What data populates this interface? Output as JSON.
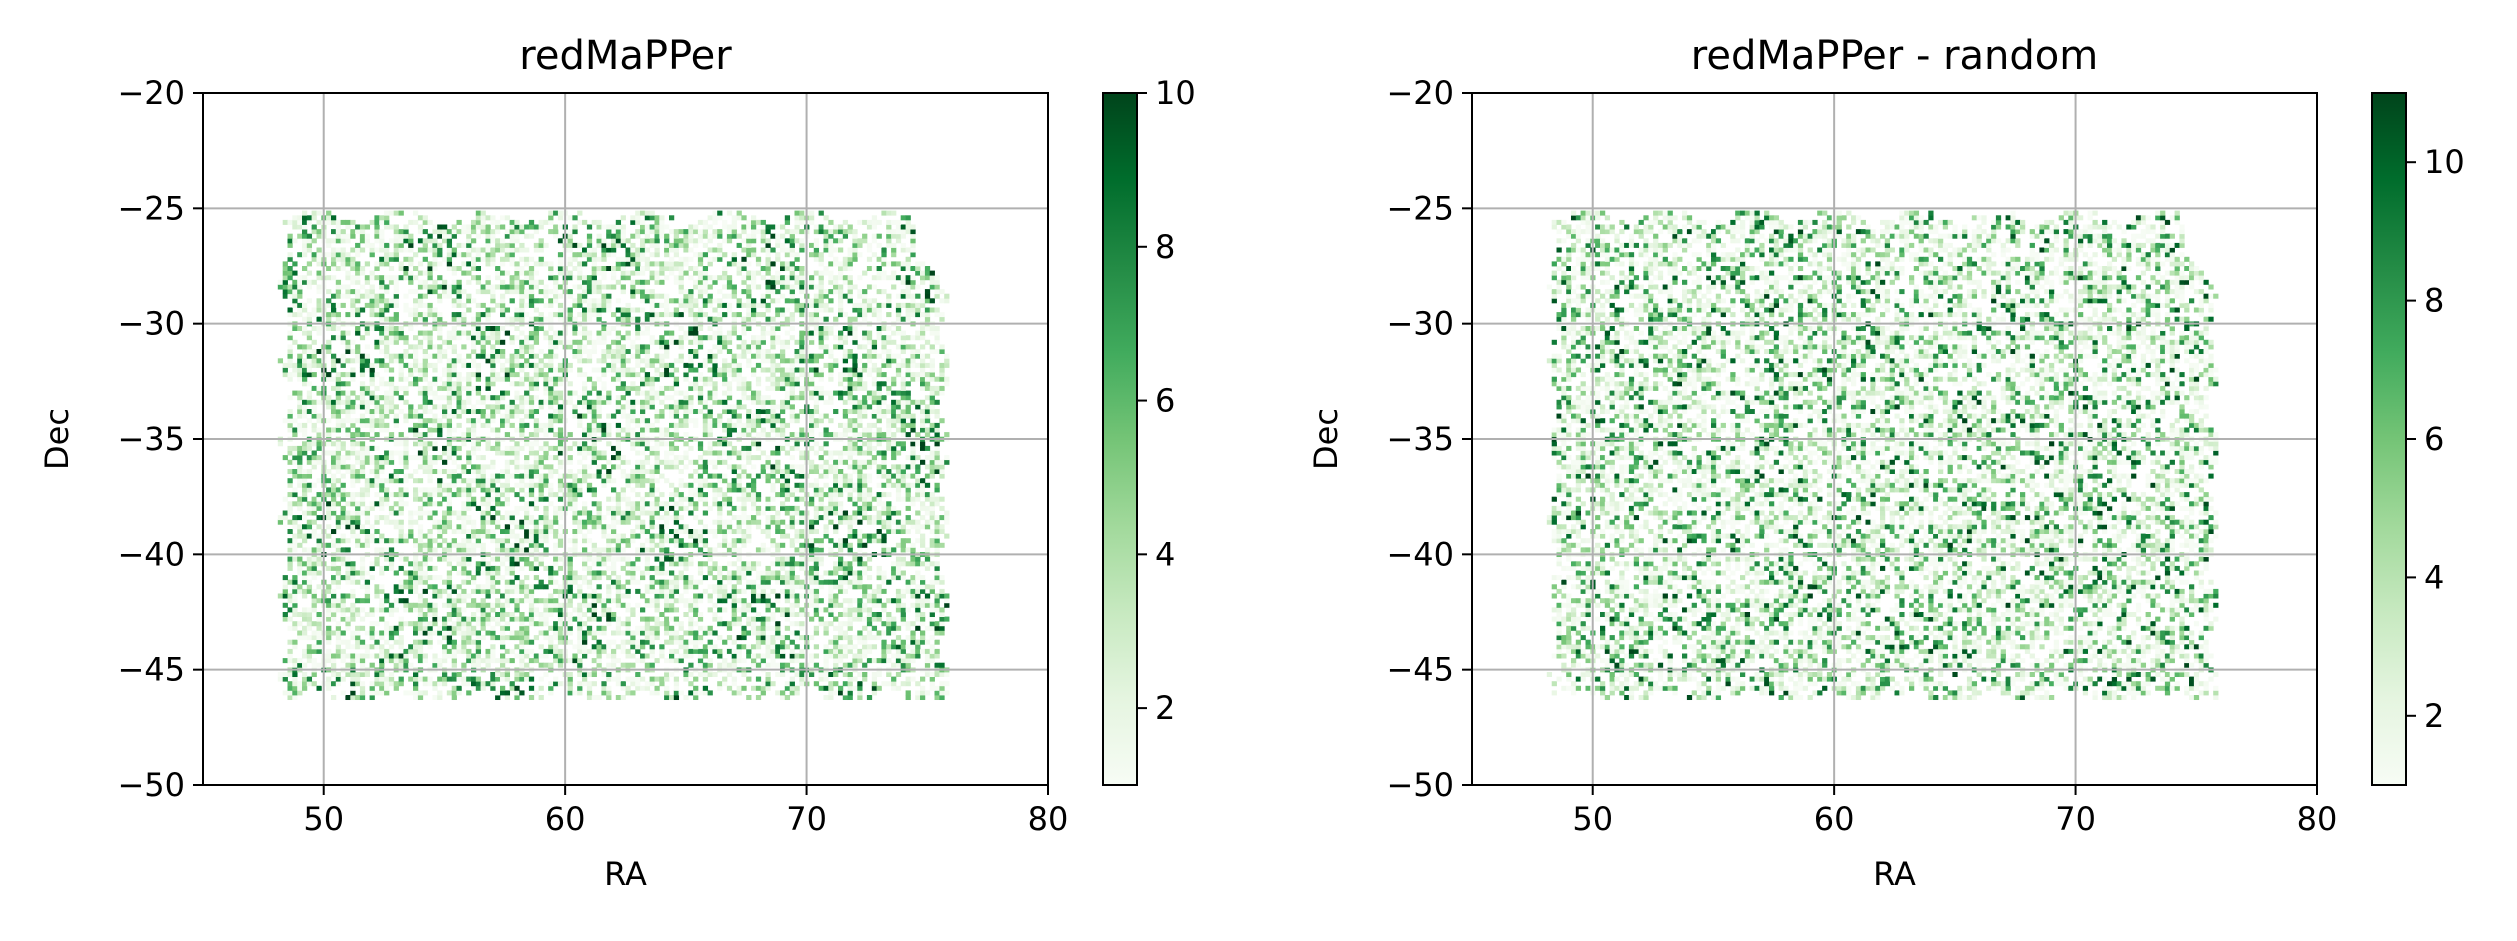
{
  "chart_data": [
    {
      "type": "heatmap",
      "title": "redMaPPer",
      "xlabel": "RA",
      "ylabel": "Dec",
      "xlim": [
        45,
        80
      ],
      "ylim": [
        -50,
        -20
      ],
      "xticks": [
        50,
        60,
        70,
        80
      ],
      "xtick_labels": [
        "50",
        "60",
        "70",
        "80"
      ],
      "yticks": [
        -20,
        -25,
        -30,
        -35,
        -40,
        -45,
        -50
      ],
      "ytick_labels": [
        "−20",
        "−25",
        "−30",
        "−35",
        "−40",
        "−45",
        "−50"
      ],
      "grid": true,
      "colormap": "Greens",
      "colorbar": {
        "range": [
          1,
          10
        ],
        "ticks": [
          2,
          4,
          6,
          8,
          10
        ],
        "tick_labels": [
          "2",
          "4",
          "6",
          "8",
          "10"
        ]
      },
      "footprint": {
        "ra": [
          48,
          76
        ],
        "dec": [
          -46.5,
          -25
        ]
      }
    },
    {
      "type": "heatmap",
      "title": "redMaPPer - random",
      "xlabel": "RA",
      "ylabel": "Dec",
      "xlim": [
        45,
        80
      ],
      "ylim": [
        -50,
        -20
      ],
      "xticks": [
        50,
        60,
        70,
        80
      ],
      "xtick_labels": [
        "50",
        "60",
        "70",
        "80"
      ],
      "yticks": [
        -20,
        -25,
        -30,
        -35,
        -40,
        -45,
        -50
      ],
      "ytick_labels": [
        "−20",
        "−25",
        "−30",
        "−35",
        "−40",
        "−45",
        "−50"
      ],
      "grid": true,
      "colormap": "Greens",
      "colorbar": {
        "range": [
          1,
          11
        ],
        "ticks": [
          2,
          4,
          6,
          8,
          10
        ],
        "tick_labels": [
          "2",
          "4",
          "6",
          "8",
          "10"
        ]
      },
      "footprint": {
        "ra": [
          48,
          76
        ],
        "dec": [
          -46.5,
          -25
        ]
      }
    }
  ],
  "colors": {
    "cmap_low": "#f7fcf5",
    "cmap_mid": "#74c476",
    "cmap_high": "#00441b",
    "grid": "#b0b0b0",
    "axis": "#000000"
  }
}
